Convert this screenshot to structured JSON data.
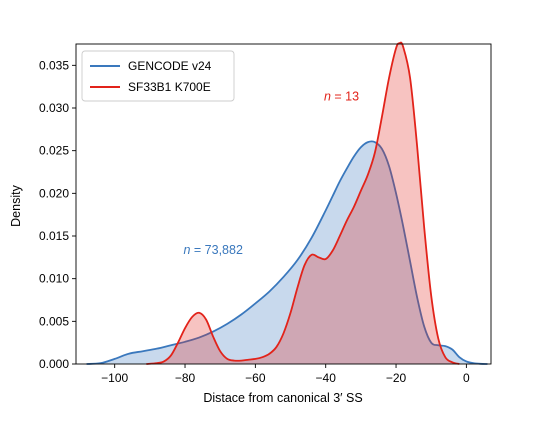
{
  "chart_data": {
    "type": "area",
    "title": "",
    "xlabel": "Distace from canonical 3′ SS",
    "ylabel": "Density",
    "xlim": [
      -111,
      7
    ],
    "ylim": [
      0,
      0.0375
    ],
    "xticks": [
      -100,
      -80,
      -60,
      -40,
      -20,
      0
    ],
    "xtick_labels": [
      "−100",
      "−80",
      "−60",
      "−40",
      "−20",
      "0"
    ],
    "yticks": [
      0.0,
      0.005,
      0.01,
      0.015,
      0.02,
      0.025,
      0.03,
      0.035
    ],
    "ytick_labels": [
      "0.000",
      "0.005",
      "0.010",
      "0.015",
      "0.020",
      "0.025",
      "0.030",
      "0.035"
    ],
    "grid": false,
    "legend_position": "top-left",
    "series": [
      {
        "name": "GENCODE v24",
        "color": "#3a78bd",
        "fill": "#3a78bd",
        "annotation": {
          "italic": "n",
          "text": " = 73,882",
          "x": -72,
          "y": 0.0129
        },
        "x": [
          -108,
          -104,
          -100,
          -96,
          -92,
          -88,
          -84,
          -80,
          -76,
          -72,
          -68,
          -64,
          -60,
          -56,
          -52,
          -48,
          -44,
          -40,
          -38,
          -36,
          -34,
          -32,
          -30,
          -28,
          -26,
          -24,
          -22,
          -20,
          -18,
          -16,
          -14,
          -12,
          -10,
          -8,
          -6,
          -4,
          -2,
          0,
          2,
          4,
          6
        ],
        "y": [
          0,
          0.0001,
          0.0006,
          0.0012,
          0.0015,
          0.0018,
          0.0022,
          0.0026,
          0.0031,
          0.0038,
          0.0047,
          0.0058,
          0.0071,
          0.0085,
          0.0102,
          0.0122,
          0.0148,
          0.018,
          0.0197,
          0.0214,
          0.0229,
          0.0243,
          0.0254,
          0.026,
          0.026,
          0.0252,
          0.0232,
          0.02,
          0.0162,
          0.012,
          0.0078,
          0.0044,
          0.0025,
          0.0022,
          0.0021,
          0.0017,
          0.0008,
          0.0003,
          0.0001,
          2e-05,
          0
        ]
      },
      {
        "name": "SF33B1 K700E",
        "color": "#e2231a",
        "fill": "#e2231a",
        "annotation": {
          "italic": "n",
          "text": " = 13",
          "x": -35.5,
          "y": 0.0309
        },
        "x": [
          -91,
          -88,
          -86,
          -84,
          -82,
          -80,
          -78,
          -76,
          -74,
          -72,
          -70,
          -68,
          -66,
          -64,
          -62,
          -60,
          -58,
          -56,
          -54,
          -52,
          -50,
          -48,
          -46,
          -44,
          -42,
          -40,
          -38,
          -36,
          -34,
          -32,
          -30,
          -28,
          -26,
          -24,
          -22,
          -20,
          -19,
          -18,
          -16,
          -14,
          -12,
          -10,
          -8,
          -6,
          -4,
          -2
        ],
        "y": [
          0,
          0.0001,
          0.0003,
          0.001,
          0.0025,
          0.0042,
          0.0055,
          0.006,
          0.0052,
          0.0032,
          0.0015,
          0.0006,
          0.0004,
          0.0004,
          0.0005,
          0.0006,
          0.0008,
          0.0012,
          0.002,
          0.0036,
          0.006,
          0.009,
          0.0116,
          0.0128,
          0.0125,
          0.0123,
          0.0133,
          0.015,
          0.0168,
          0.0184,
          0.0203,
          0.0222,
          0.0248,
          0.029,
          0.0335,
          0.037,
          0.0376,
          0.0372,
          0.0335,
          0.0255,
          0.016,
          0.008,
          0.003,
          0.0008,
          0.0002,
          0
        ]
      }
    ]
  }
}
